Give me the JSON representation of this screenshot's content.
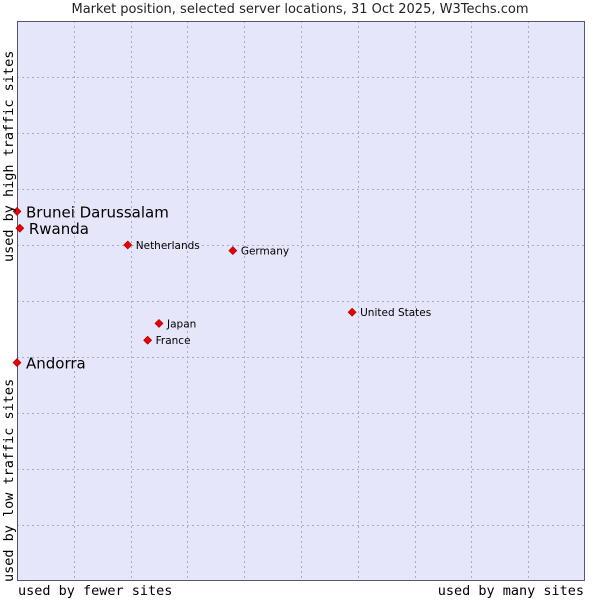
{
  "chart_data": {
    "type": "scatter",
    "title": "Market position, selected server locations, 31 Oct 2025, W3Techs.com",
    "x_axis": {
      "low_label": "used by fewer sites",
      "high_label": "used by many sites",
      "range": [
        0,
        10
      ]
    },
    "y_axis": {
      "low_label": "used by low traffic sites",
      "high_label": "used by high traffic sites",
      "range": [
        0,
        10
      ]
    },
    "grid": true,
    "colors": {
      "background": "#e6e6fa",
      "grid": "#aaaacc",
      "marker": "#ee0000",
      "border": "#555577"
    },
    "points": [
      {
        "label": "Brunei Darussalam",
        "x": 0.0,
        "y": 6.6,
        "emphasis": true
      },
      {
        "label": "Rwanda",
        "x": 0.05,
        "y": 6.3,
        "emphasis": true
      },
      {
        "label": "Andorra",
        "x": 0.0,
        "y": 3.9,
        "emphasis": true
      },
      {
        "label": "Netherlands",
        "x": 1.95,
        "y": 6.0,
        "emphasis": false
      },
      {
        "label": "Germany",
        "x": 3.8,
        "y": 5.9,
        "emphasis": false
      },
      {
        "label": "United States",
        "x": 5.9,
        "y": 4.8,
        "emphasis": false
      },
      {
        "label": "Japan",
        "x": 2.5,
        "y": 4.6,
        "emphasis": false
      },
      {
        "label": "France",
        "x": 2.3,
        "y": 4.3,
        "emphasis": false
      }
    ]
  }
}
